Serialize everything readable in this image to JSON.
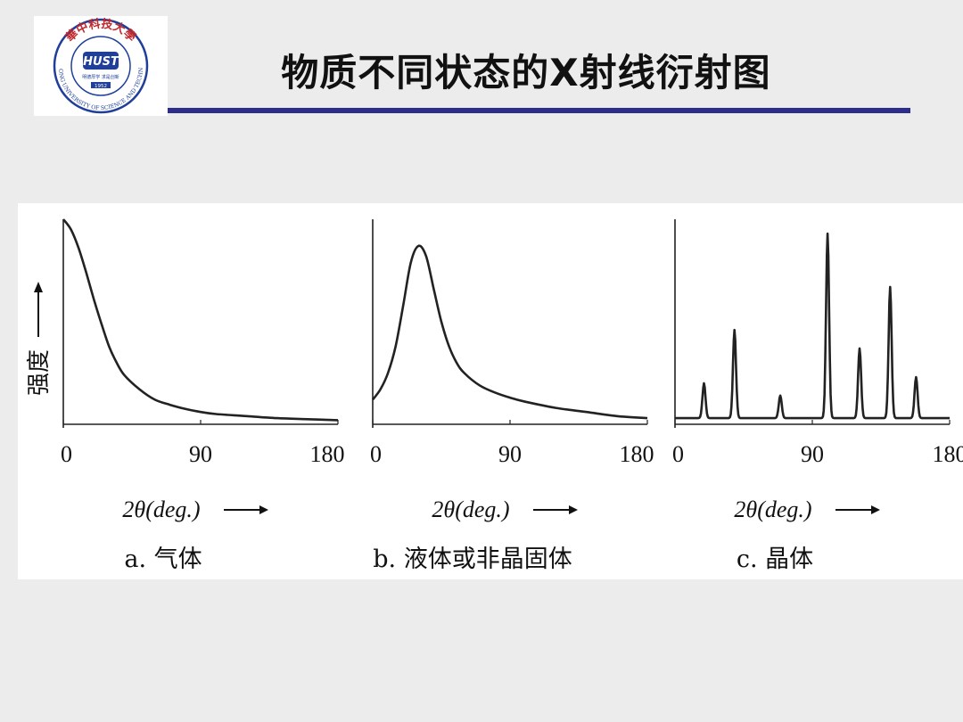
{
  "slide": {
    "title": "物质不同状态的X射线衍射图"
  },
  "logo": {
    "arc_text_top": "華中科技大學",
    "arc_text_bottom": "HUAZHONG UNIVERSITY OF SCIENCE AND TECHNOLOGY",
    "center_text": "HUST",
    "motto": "明德厚学 求是创新",
    "year": "1952"
  },
  "colors": {
    "rule": "#2d2d8c",
    "logo_blue": "#1f3f9a",
    "logo_red": "#c0282e",
    "curve": "#222222"
  },
  "chart_data": [
    {
      "type": "line",
      "caption": "a. 气体",
      "ylabel": "强度",
      "xlabel": "2θ(deg.)",
      "xticks": [
        0,
        90,
        180
      ],
      "xlim": [
        0,
        180
      ],
      "ylim": [
        0,
        1
      ],
      "x": [
        0,
        5,
        10,
        15,
        20,
        25,
        30,
        35,
        40,
        50,
        60,
        70,
        80,
        90,
        100,
        120,
        140,
        160,
        180
      ],
      "y": [
        1.0,
        0.95,
        0.86,
        0.74,
        0.61,
        0.49,
        0.38,
        0.3,
        0.24,
        0.17,
        0.12,
        0.095,
        0.075,
        0.06,
        0.05,
        0.04,
        0.03,
        0.025,
        0.02
      ]
    },
    {
      "type": "line",
      "caption": "b. 液体或非晶固体",
      "xlabel": "2θ(deg.)",
      "xticks": [
        0,
        90,
        180
      ],
      "xlim": [
        0,
        180
      ],
      "ylim": [
        0,
        1
      ],
      "x": [
        0,
        5,
        10,
        15,
        20,
        25,
        30,
        35,
        40,
        45,
        50,
        55,
        60,
        70,
        80,
        90,
        100,
        120,
        140,
        160,
        180
      ],
      "y": [
        0.12,
        0.17,
        0.25,
        0.38,
        0.58,
        0.79,
        0.87,
        0.82,
        0.66,
        0.5,
        0.38,
        0.3,
        0.25,
        0.19,
        0.155,
        0.13,
        0.11,
        0.08,
        0.06,
        0.04,
        0.03
      ]
    },
    {
      "type": "line",
      "caption": "c. 晶体",
      "xlabel": "2θ(deg.)",
      "xticks": [
        0,
        90,
        180
      ],
      "xlim": [
        0,
        180
      ],
      "ylim": [
        0,
        1
      ],
      "baseline": 0.03,
      "peaks": [
        {
          "x": 19,
          "y": 0.2
        },
        {
          "x": 39,
          "y": 0.46
        },
        {
          "x": 69,
          "y": 0.14
        },
        {
          "x": 100,
          "y": 0.93
        },
        {
          "x": 121,
          "y": 0.37
        },
        {
          "x": 141,
          "y": 0.67
        },
        {
          "x": 158,
          "y": 0.23
        }
      ]
    }
  ]
}
